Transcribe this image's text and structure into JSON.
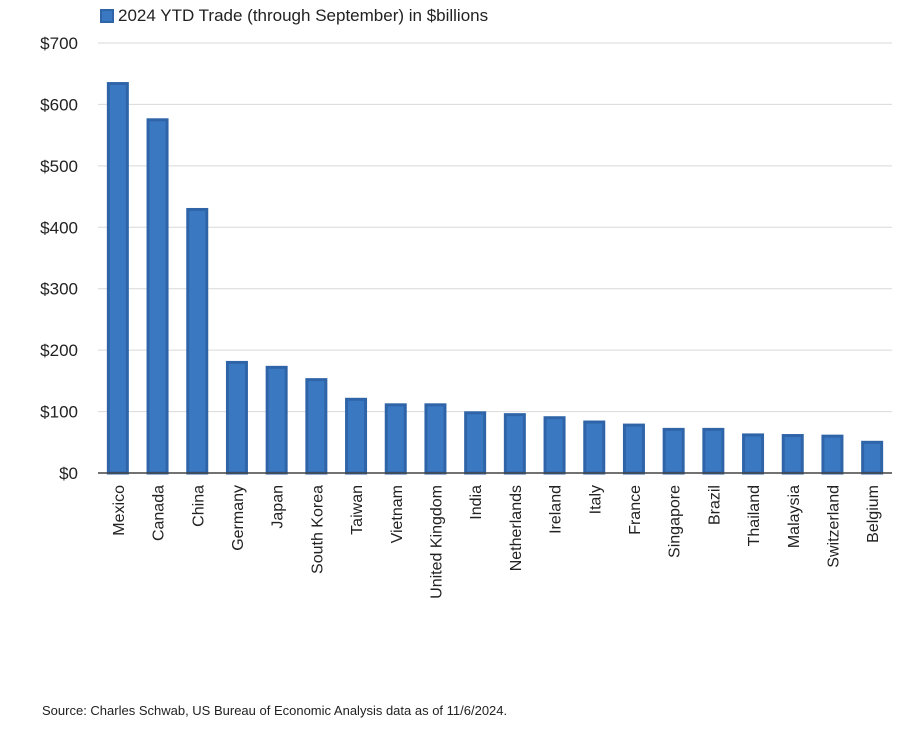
{
  "chart_data": {
    "type": "bar",
    "legend": {
      "label": "2024 YTD Trade (through September) in $billions",
      "placement": "top-left"
    },
    "categories": [
      "Mexico",
      "Canada",
      "China",
      "Germany",
      "Japan",
      "South Korea",
      "Taiwan",
      "Vietnam",
      "United Kingdom",
      "India",
      "Netherlands",
      "Ireland",
      "Italy",
      "France",
      "Singapore",
      "Brazil",
      "Thailand",
      "Malaysia",
      "Switzerland",
      "Belgium"
    ],
    "values": [
      634,
      575,
      429,
      180,
      172,
      152,
      120,
      111,
      111,
      98,
      95,
      90,
      83,
      78,
      71,
      71,
      62,
      61,
      60,
      50
    ],
    "yticks": [
      "$0",
      "$100",
      "$200",
      "$300",
      "$400",
      "$500",
      "$600",
      "$700"
    ],
    "ylim": [
      0,
      700
    ],
    "grid": true,
    "colors": {
      "bar_fill": "#3a78c2",
      "bar_edge": "#2f65a8",
      "grid": "#d9d9d9",
      "axis": "#444444"
    }
  },
  "source": "Source: Charles Schwab, US Bureau of Economic Analysis data as of 11/6/2024."
}
